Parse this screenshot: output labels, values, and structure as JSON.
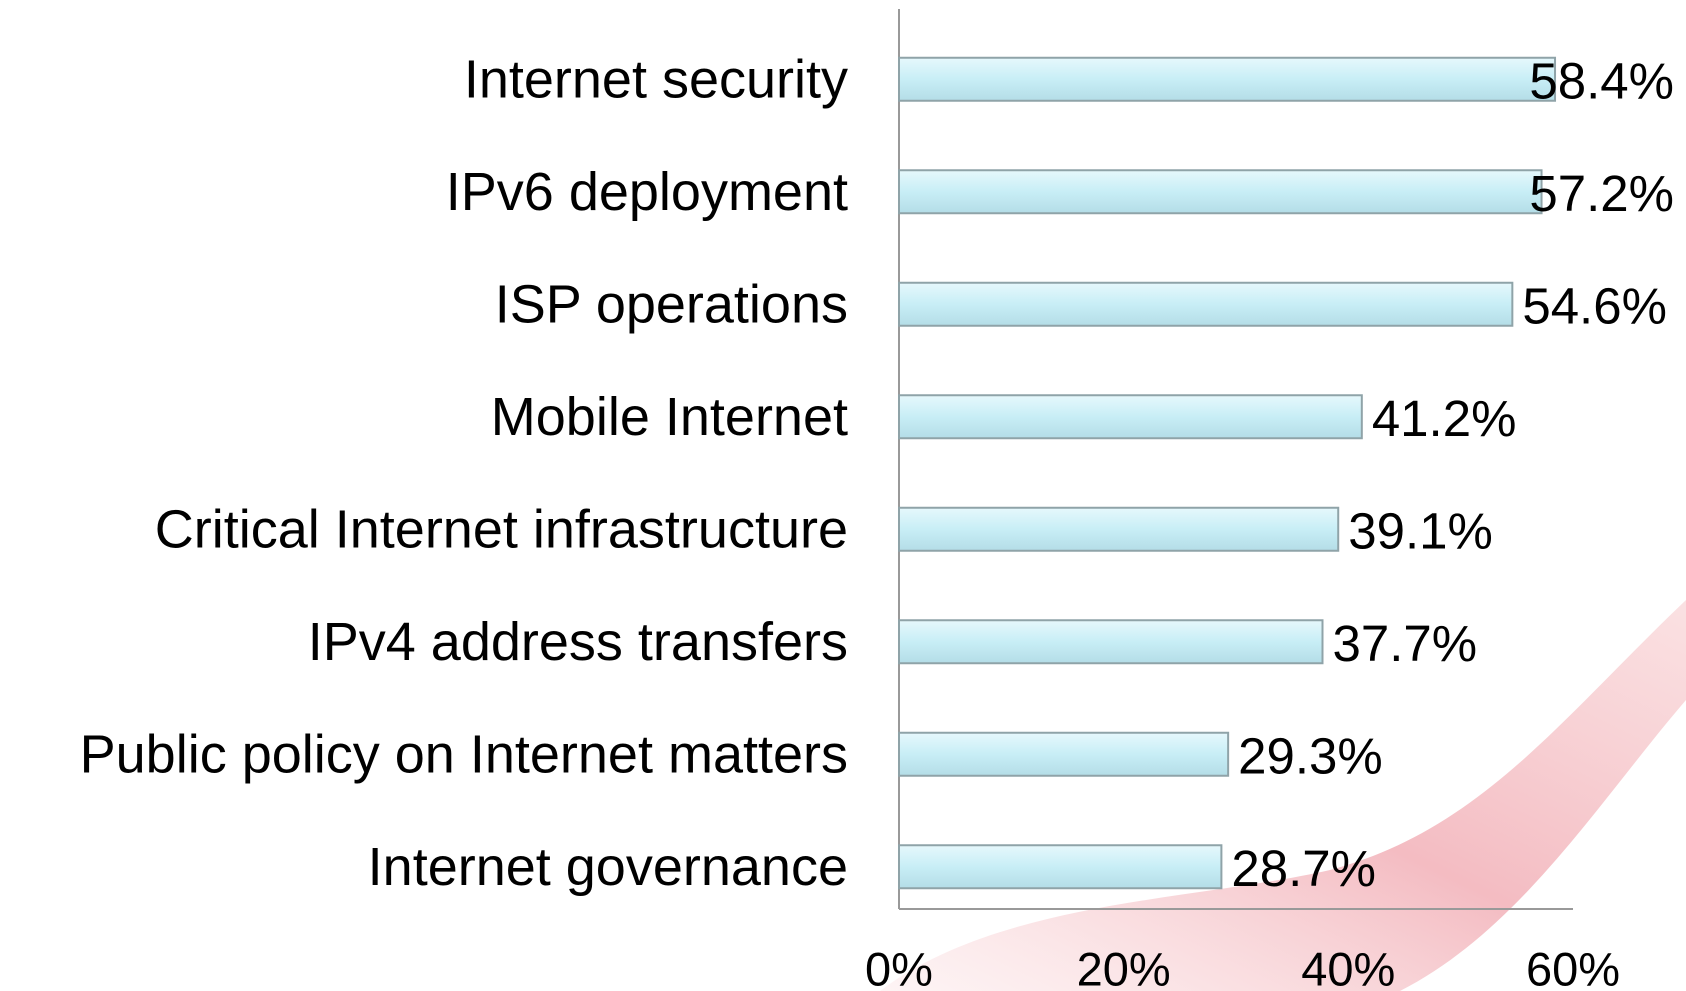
{
  "chart_data": {
    "type": "bar",
    "orientation": "horizontal",
    "categories": [
      "Internet security",
      "IPv6 deployment",
      "ISP operations",
      "Mobile Internet",
      "Critical Internet infrastructure",
      "IPv4 address transfers",
      "Public policy on Internet matters",
      "Internet governance"
    ],
    "values": [
      58.4,
      57.2,
      54.6,
      41.2,
      39.1,
      37.7,
      29.3,
      28.7
    ],
    "value_labels": [
      "58.4%",
      "57.2%",
      "54.6%",
      "41.2%",
      "39.1%",
      "37.7%",
      "29.3%",
      "28.7%"
    ],
    "color": "#c8eef6",
    "xlim": [
      0,
      60
    ],
    "xticks": [
      {
        "value": 0,
        "label": "0%"
      },
      {
        "value": 20,
        "label": "20%"
      },
      {
        "value": 40,
        "label": "40%"
      },
      {
        "value": 60,
        "label": "60%"
      }
    ]
  }
}
